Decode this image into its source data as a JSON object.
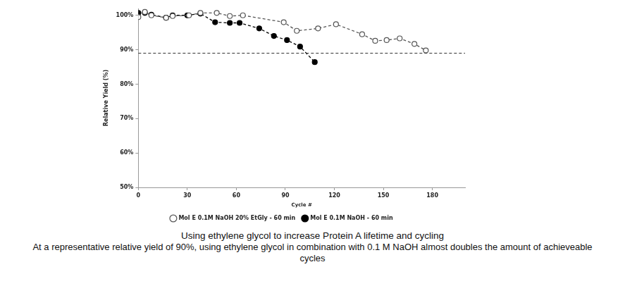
{
  "chart_data": {
    "type": "line",
    "title": "Using ethylene glycol to increase Protein A lifetime and cycling",
    "subtitle": "At a representative relative yield of 90%, using ethylene glycol in combination with 0.1 M NaOH almost doubles the amount of achieveable cycles",
    "x_label": "Cycle #",
    "y_label": "Relative Yield (%)",
    "xlim": [
      0,
      200
    ],
    "xticks": [
      0,
      30,
      60,
      90,
      120,
      150,
      180
    ],
    "ylim": [
      50,
      102
    ],
    "yticks": [
      {
        "value": 50,
        "label": "50%"
      },
      {
        "value": 60,
        "label": "60%"
      },
      {
        "value": 70,
        "label": "70%"
      },
      {
        "value": 80,
        "label": "80%"
      },
      {
        "value": 90,
        "label": "90%"
      },
      {
        "value": 100,
        "label": "100%"
      }
    ],
    "threshold": 89,
    "grid": false,
    "legend": "bottom",
    "series": [
      {
        "name": "Mol E 0.1M NaOH 20% EtGly - 60 min",
        "color": "#555555",
        "marker": "open_circle",
        "line_style": "dashed",
        "x": [
          0,
          4,
          8,
          17,
          21,
          31,
          38,
          48,
          56,
          64,
          89,
          97,
          110,
          121,
          137,
          145,
          152,
          160,
          169,
          176
        ],
        "values": [
          99.5,
          101,
          100,
          99.3,
          99.8,
          100,
          100.7,
          100.7,
          99.8,
          100,
          98,
          95.5,
          96.2,
          97.4,
          94.5,
          92.6,
          92.8,
          93.3,
          91.7,
          89.8
        ]
      },
      {
        "name": "Mol E 0.1M NaOH - 60 min",
        "color": "#000000",
        "marker": "circle",
        "line_style": "dashed",
        "x": [
          0,
          4,
          8,
          17,
          21,
          30,
          38,
          47,
          56,
          62,
          74,
          83,
          91,
          99,
          108
        ],
        "values": [
          100.7,
          100.7,
          100.2,
          99.3,
          100,
          100,
          100.5,
          98,
          97.8,
          97.8,
          96.2,
          94,
          92.8,
          90.9,
          86.4
        ]
      }
    ]
  }
}
